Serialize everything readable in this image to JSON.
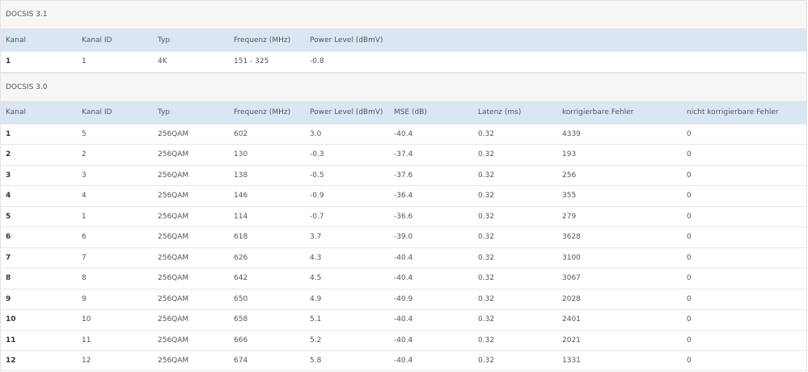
{
  "sections": [
    {
      "title": "DOCSIS 3.1",
      "columns": [
        "Kanal",
        "Kanal ID",
        "Typ",
        "Frequenz (MHz)",
        "Power Level (dBmV)"
      ],
      "rows": [
        [
          "1",
          "1",
          "4K",
          "151 - 325",
          "-0.8"
        ]
      ]
    },
    {
      "title": "DOCSIS 3.0",
      "columns": [
        "Kanal",
        "Kanal ID",
        "Typ",
        "Frequenz (MHz)",
        "Power Level (dBmV)",
        "MSE (dB)",
        "Latenz (ms)",
        "korrigierbare Fehler",
        "nicht korrigierbare Fehler"
      ],
      "rows": [
        [
          "1",
          "5",
          "256QAM",
          "602",
          "3.0",
          "-40.4",
          "0.32",
          "4339",
          "0"
        ],
        [
          "2",
          "2",
          "256QAM",
          "130",
          "-0.3",
          "-37.4",
          "0.32",
          "193",
          "0"
        ],
        [
          "3",
          "3",
          "256QAM",
          "138",
          "-0.5",
          "-37.6",
          "0.32",
          "256",
          "0"
        ],
        [
          "4",
          "4",
          "256QAM",
          "146",
          "-0.9",
          "-36.4",
          "0.32",
          "355",
          "0"
        ],
        [
          "5",
          "1",
          "256QAM",
          "114",
          "-0.7",
          "-36.6",
          "0.32",
          "279",
          "0"
        ],
        [
          "6",
          "6",
          "256QAM",
          "618",
          "3.7",
          "-39.0",
          "0.32",
          "3628",
          "0"
        ],
        [
          "7",
          "7",
          "256QAM",
          "626",
          "4.3",
          "-40.4",
          "0.32",
          "3100",
          "0"
        ],
        [
          "8",
          "8",
          "256QAM",
          "642",
          "4.5",
          "-40.4",
          "0.32",
          "3067",
          "0"
        ],
        [
          "9",
          "9",
          "256QAM",
          "650",
          "4.9",
          "-40.9",
          "0.32",
          "2028",
          "0"
        ],
        [
          "10",
          "10",
          "256QAM",
          "658",
          "5.1",
          "-40.4",
          "0.32",
          "2401",
          "0"
        ],
        [
          "11",
          "11",
          "256QAM",
          "666",
          "5.2",
          "-40.4",
          "0.32",
          "2021",
          "0"
        ],
        [
          "12",
          "12",
          "256QAM",
          "674",
          "5.8",
          "-40.4",
          "0.32",
          "1331",
          "0"
        ]
      ]
    }
  ]
}
